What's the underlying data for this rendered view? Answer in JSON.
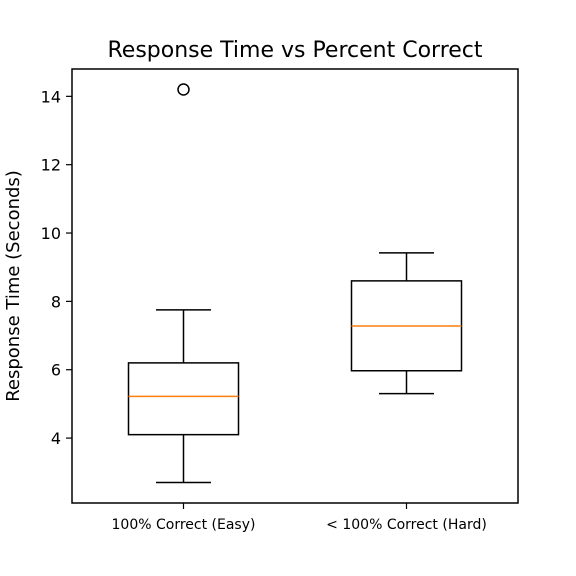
{
  "chart_data": {
    "type": "boxplot",
    "title": "Response Time vs Percent Correct",
    "xlabel": "",
    "ylabel": "Response Time (Seconds)",
    "ylim": [
      2.1,
      14.8
    ],
    "yticks": [
      4,
      6,
      8,
      10,
      12,
      14
    ],
    "grid": false,
    "categories": [
      "100% Correct (Easy)",
      "< 100% Correct (Hard)"
    ],
    "boxes": [
      {
        "whisker_low": 2.7,
        "q1": 4.1,
        "median": 5.22,
        "q3": 6.2,
        "whisker_high": 7.75,
        "outliers": [
          14.2
        ]
      },
      {
        "whisker_low": 5.3,
        "q1": 5.97,
        "median": 7.28,
        "q3": 8.6,
        "whisker_high": 9.42,
        "outliers": []
      }
    ],
    "colors": {
      "box": "#000000",
      "median": "#ff7f0e",
      "background": "#ffffff"
    }
  }
}
